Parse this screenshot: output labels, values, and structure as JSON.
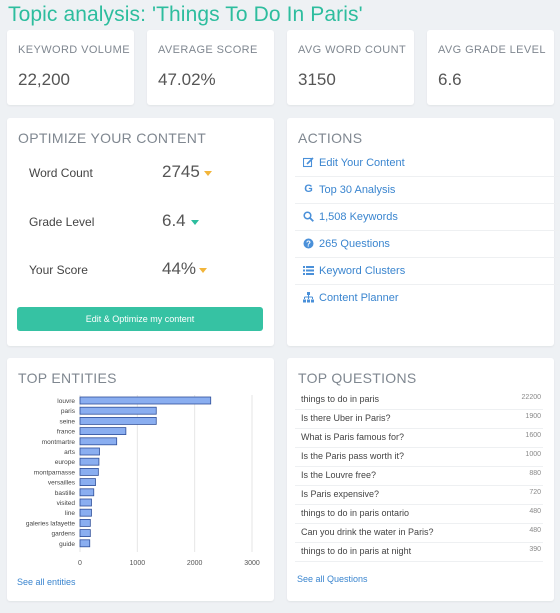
{
  "page_title": "Topic analysis: 'Things To Do In Paris'",
  "stats": [
    {
      "label": "KEYWORD VOLUME",
      "value": "22,200"
    },
    {
      "label": "AVERAGE SCORE",
      "value": "47.02%"
    },
    {
      "label": "AVG WORD COUNT",
      "value": "3150"
    },
    {
      "label": "AVG GRADE LEVEL",
      "value": "6.6"
    }
  ],
  "optimize": {
    "title": "OPTIMIZE YOUR CONTENT",
    "metrics": [
      {
        "label": "Word Count",
        "value": "2745",
        "indicator": "down-yellow"
      },
      {
        "label": "Grade Level",
        "value": "6.4",
        "indicator": "down-green"
      },
      {
        "label": "Your Score",
        "value": "44%",
        "indicator": "down-yellow"
      }
    ],
    "button_label": "Edit & Optimize my content",
    "colors": {
      "accent": "#36c2a3",
      "yellow": "#f2b53a",
      "green": "#2dbd9e"
    }
  },
  "actions": {
    "title": "ACTIONS",
    "items": [
      {
        "label": "Edit Your Content",
        "icon": "edit-icon"
      },
      {
        "label": "Top 30 Analysis",
        "icon": "google-icon"
      },
      {
        "label": "1,508 Keywords",
        "icon": "search-icon"
      },
      {
        "label": "265 Questions",
        "icon": "question-circle-icon"
      },
      {
        "label": "Keyword Clusters",
        "icon": "list-icon"
      },
      {
        "label": "Content Planner",
        "icon": "sitemap-icon"
      }
    ]
  },
  "entities": {
    "title": "TOP ENTITIES",
    "see_all": "See all entities"
  },
  "chart_data": {
    "type": "bar",
    "orientation": "horizontal",
    "categories": [
      "louvre",
      "paris",
      "seine",
      "france",
      "montmartre",
      "arts",
      "europe",
      "montparnasse",
      "versailles",
      "bastille",
      "visited",
      "line",
      "galeries lafayette",
      "gardens",
      "guide"
    ],
    "values": [
      2280,
      1330,
      1330,
      800,
      640,
      340,
      330,
      320,
      270,
      240,
      200,
      200,
      180,
      180,
      170
    ],
    "xlim": [
      0,
      3000
    ],
    "xticks": [
      "0",
      "1000",
      "2000",
      "3000"
    ],
    "bar_color": "#8aaef0",
    "bar_stroke": "#2f4f9a"
  },
  "questions": {
    "title": "TOP QUESTIONS",
    "items": [
      {
        "text": "things to do in paris",
        "count": "22200"
      },
      {
        "text": "Is there Uber in Paris?",
        "count": "1900"
      },
      {
        "text": "What is Paris famous for?",
        "count": "1600"
      },
      {
        "text": "Is the Paris pass worth it?",
        "count": "1000"
      },
      {
        "text": "Is the Louvre free?",
        "count": "880"
      },
      {
        "text": "Is Paris expensive?",
        "count": "720"
      },
      {
        "text": "things to do in paris ontario",
        "count": "480"
      },
      {
        "text": "Can you drink the water in Paris?",
        "count": "480"
      },
      {
        "text": "things to do in paris at night",
        "count": "390"
      }
    ],
    "see_all": "See all Questions"
  }
}
